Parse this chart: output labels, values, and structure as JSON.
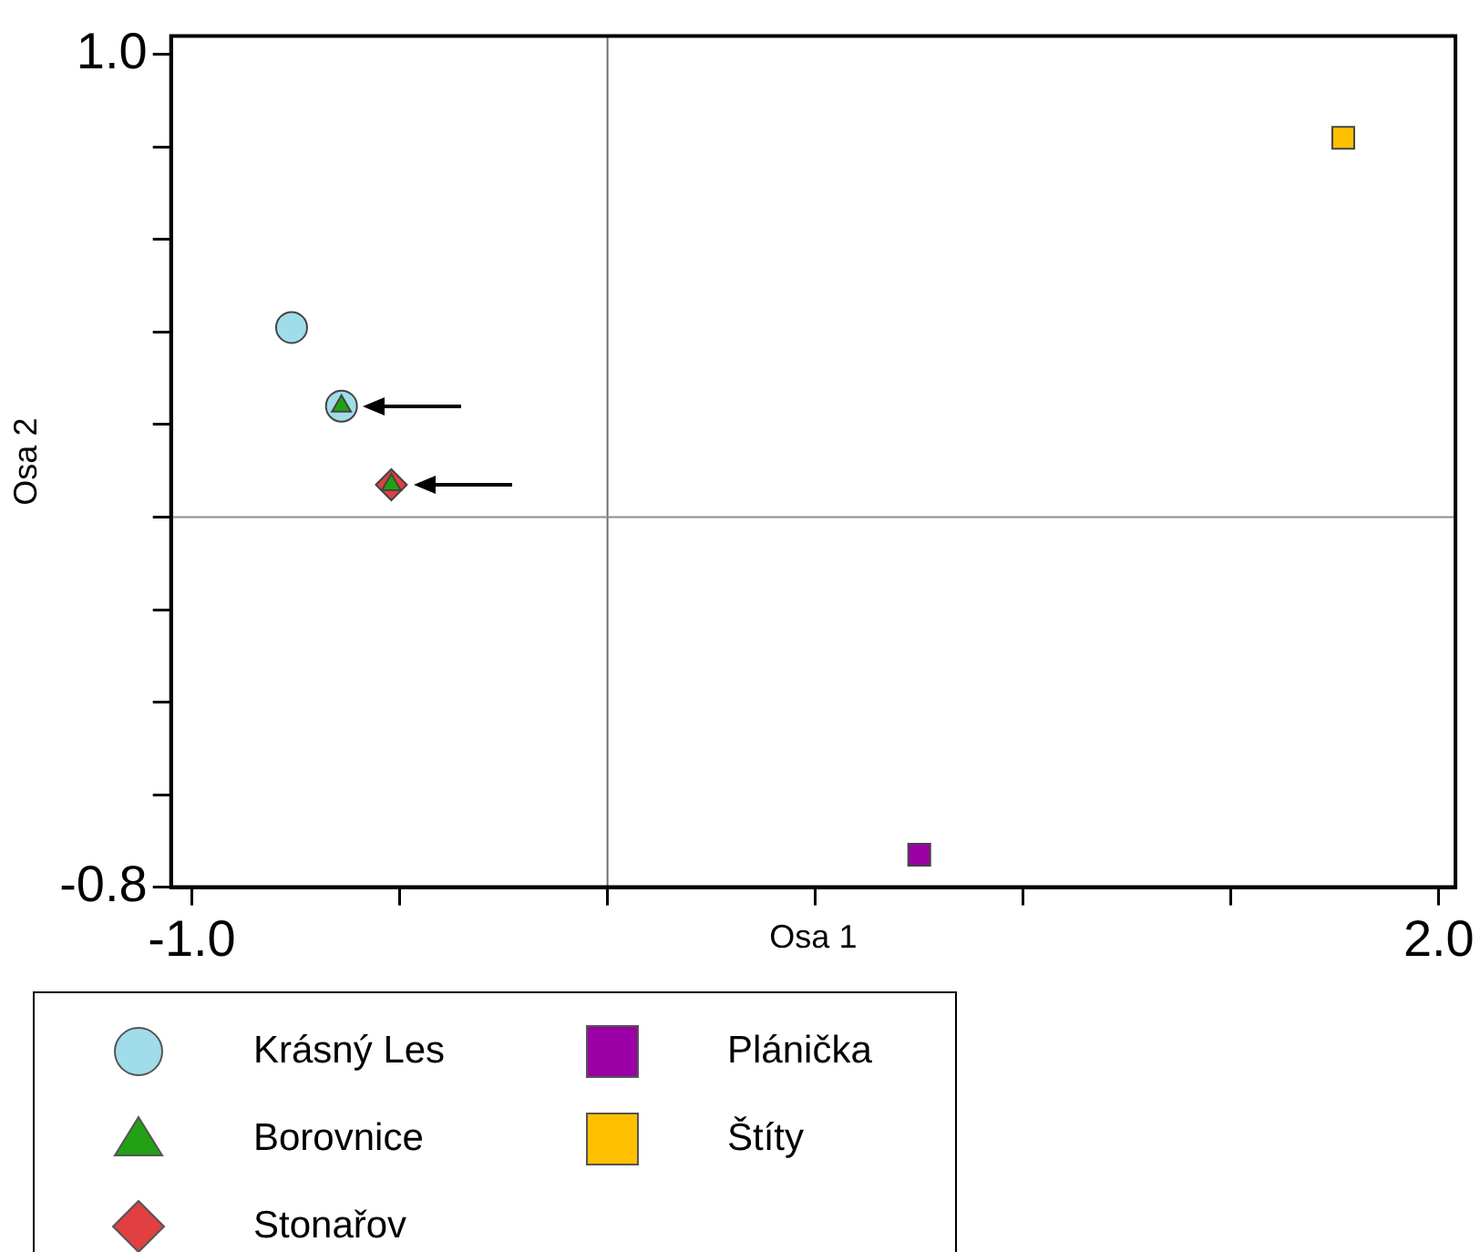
{
  "chart_data": {
    "type": "scatter",
    "xlabel": "Osa 1",
    "ylabel": "Osa 2",
    "xlim": [
      -1.05,
      2.04
    ],
    "ylim": [
      -0.8,
      1.04
    ],
    "xticks": [
      {
        "value": -1,
        "label": "-1.0"
      },
      {
        "value": -0.5,
        "label": null
      },
      {
        "value": 0,
        "label": null
      },
      {
        "value": 0.5,
        "label": null
      },
      {
        "value": 1.0,
        "label": null
      },
      {
        "value": 1.5,
        "label": null
      },
      {
        "value": 2,
        "label": "2.0"
      }
    ],
    "yticks": [
      {
        "value": -0.8,
        "label": "-0.8"
      },
      {
        "value": -0.6,
        "label": null
      },
      {
        "value": -0.4,
        "label": null
      },
      {
        "value": -0.2,
        "label": null
      },
      {
        "value": 0,
        "label": null
      },
      {
        "value": 0.2,
        "label": null
      },
      {
        "value": 0.4,
        "label": null
      },
      {
        "value": 0.6,
        "label": null
      },
      {
        "value": 0.8,
        "label": null
      },
      {
        "value": 1,
        "label": "1.0"
      }
    ],
    "grid": false,
    "legend": "bottom left",
    "ref_lines": [
      {
        "axis": "x",
        "value": 0,
        "color": "#6e6e6e"
      },
      {
        "axis": "y",
        "value": 0,
        "color": "#8c8c8c"
      }
    ],
    "series": [
      {
        "name": "Krásný Les",
        "color": "#a0dcea",
        "marker": "circle",
        "x": [
          -0.76,
          -0.64
        ],
        "values": [
          0.41,
          0.24
        ]
      },
      {
        "name": "Borovnice",
        "color": "#22a114",
        "marker": "triangle",
        "x": [
          -0.64,
          -0.52
        ],
        "values": [
          0.24,
          0.07
        ]
      },
      {
        "name": "Stonařov",
        "color": "#e04040",
        "marker": "diamond",
        "x": [
          -0.52
        ],
        "values": [
          0.07
        ]
      },
      {
        "name": "Plánička",
        "color": "#9b00a6",
        "marker": "square",
        "x": [
          0.75
        ],
        "values": [
          -0.73
        ]
      },
      {
        "name": "Štíty",
        "color": "#ffc000",
        "marker": "square",
        "x": [
          1.77
        ],
        "values": [
          0.82
        ]
      }
    ]
  }
}
